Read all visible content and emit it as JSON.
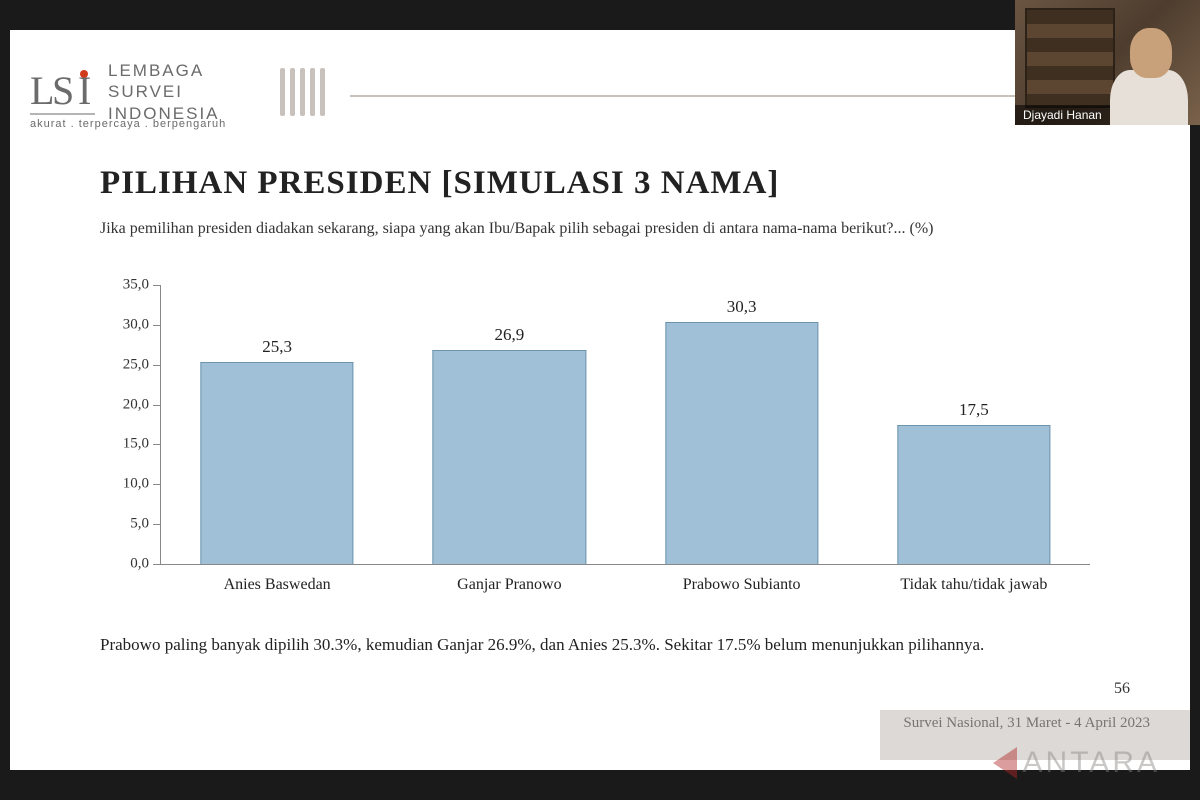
{
  "org": {
    "name_lines": [
      "LEMBAGA",
      "SURVEI",
      "INDONESIA"
    ],
    "tagline": "akurat . terpercaya . berpengaruh",
    "logo_dot_color": "#d13a1a",
    "logo_stroke": "#6b6b6b"
  },
  "title": "PILIHAN PRESIDEN [SIMULASI 3 NAMA]",
  "subtitle": "Jika pemilihan presiden diadakan sekarang, siapa yang akan Ibu/Bapak pilih sebagai presiden di antara nama-nama berikut?... (%)",
  "chart": {
    "type": "bar",
    "categories": [
      "Anies Baswedan",
      "Ganjar Pranowo",
      "Prabowo Subianto",
      "Tidak tahu/tidak jawab"
    ],
    "values": [
      25.3,
      26.9,
      30.3,
      17.5
    ],
    "value_labels": [
      "25,3",
      "26,9",
      "30,3",
      "17,5"
    ],
    "bar_color": "#9fc0d6",
    "bar_border": "#6d94ae",
    "ylim": [
      0,
      35
    ],
    "ytick_step": 5,
    "ytick_labels": [
      "0,0",
      "5,0",
      "10,0",
      "15,0",
      "20,0",
      "25,0",
      "30,0",
      "35,0"
    ],
    "background_color": "#ffffff",
    "axis_color": "#888888",
    "title_fontsize": 33,
    "label_fontsize": 16,
    "value_fontsize": 17,
    "bar_width": 0.66
  },
  "footnote": "Prabowo paling banyak dipilih 30.3%, kemudian Ganjar 26.9%, dan Anies 25.3%. Sekitar 17.5% belum menunjukkan pilihannya.",
  "page_number": "56",
  "survey_date": "Survei Nasional, 31 Maret - 4 April 2023",
  "presenter_name": "Djayadi Hanan",
  "watermark": "ANTARA"
}
